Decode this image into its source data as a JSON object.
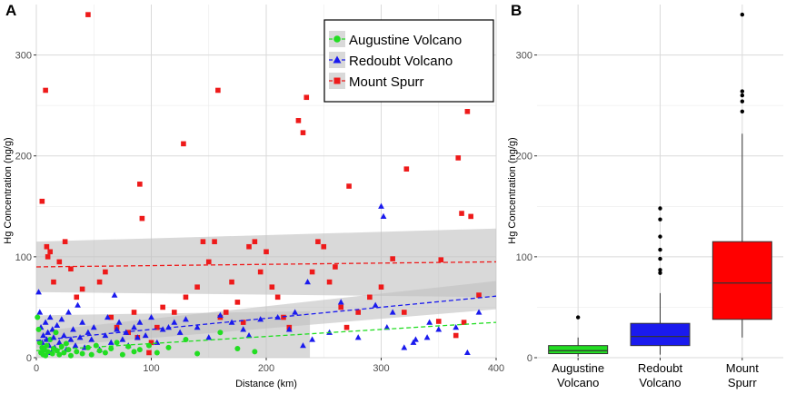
{
  "chart_data": [
    {
      "type": "scatter",
      "panel_label": "A",
      "xlabel": "Distance (km)",
      "ylabel": "Hg Concentration (ng/g)",
      "xlim": [
        0,
        400
      ],
      "ylim": [
        0,
        350
      ],
      "x_ticks": [
        "0",
        "100",
        "200",
        "300",
        "400"
      ],
      "y_ticks": [
        "0",
        "100",
        "200",
        "300"
      ],
      "legend": {
        "placement": "top-right",
        "entries": [
          "Augustine Volcano",
          "Redoubt Volcano",
          "Mount Spurr"
        ]
      },
      "series": [
        {
          "name": "Augustine Volcano",
          "color": "#22dd22",
          "marker": "circle",
          "trend": {
            "x": [
              0,
              400
            ],
            "y": [
              7,
              35
            ]
          },
          "band": {
            "x": [
              0,
              238
            ],
            "lower": [
              0,
              0
            ],
            "upper": [
              42,
              46
            ]
          },
          "points": [
            [
              1,
              40
            ],
            [
              2,
              28
            ],
            [
              3,
              15
            ],
            [
              4,
              5
            ],
            [
              5,
              10
            ],
            [
              6,
              3
            ],
            [
              7,
              8
            ],
            [
              8,
              2
            ],
            [
              9,
              12
            ],
            [
              10,
              6
            ],
            [
              12,
              18
            ],
            [
              14,
              4
            ],
            [
              15,
              9
            ],
            [
              17,
              25
            ],
            [
              18,
              7
            ],
            [
              20,
              3
            ],
            [
              22,
              11
            ],
            [
              24,
              5
            ],
            [
              26,
              14
            ],
            [
              28,
              8
            ],
            [
              30,
              2
            ],
            [
              35,
              6
            ],
            [
              40,
              4
            ],
            [
              45,
              10
            ],
            [
              48,
              3
            ],
            [
              52,
              12
            ],
            [
              55,
              7
            ],
            [
              60,
              5
            ],
            [
              65,
              9
            ],
            [
              70,
              15
            ],
            [
              75,
              3
            ],
            [
              80,
              11
            ],
            [
              85,
              6
            ],
            [
              90,
              8
            ],
            [
              98,
              12
            ],
            [
              105,
              5
            ],
            [
              115,
              10
            ],
            [
              130,
              18
            ],
            [
              140,
              4
            ],
            [
              160,
              25
            ],
            [
              175,
              9
            ],
            [
              190,
              6
            ]
          ]
        },
        {
          "name": "Redoubt Volcano",
          "color": "#1a1aee",
          "marker": "triangle",
          "trend": {
            "x": [
              0,
              400
            ],
            "y": [
              17,
              61
            ]
          },
          "band": {
            "x": [
              0,
              400
            ],
            "lower": [
              10,
              48
            ],
            "upper": [
              26,
              76
            ]
          },
          "points": [
            [
              2,
              65
            ],
            [
              3,
              45
            ],
            [
              4,
              30
            ],
            [
              5,
              15
            ],
            [
              6,
              22
            ],
            [
              7,
              8
            ],
            [
              8,
              35
            ],
            [
              9,
              18
            ],
            [
              10,
              25
            ],
            [
              11,
              12
            ],
            [
              12,
              40
            ],
            [
              13,
              5
            ],
            [
              14,
              28
            ],
            [
              15,
              20
            ],
            [
              16,
              10
            ],
            [
              18,
              32
            ],
            [
              20,
              15
            ],
            [
              22,
              38
            ],
            [
              24,
              22
            ],
            [
              26,
              8
            ],
            [
              28,
              45
            ],
            [
              30,
              18
            ],
            [
              32,
              28
            ],
            [
              34,
              12
            ],
            [
              36,
              52
            ],
            [
              38,
              20
            ],
            [
              40,
              35
            ],
            [
              42,
              10
            ],
            [
              45,
              25
            ],
            [
              48,
              18
            ],
            [
              50,
              30
            ],
            [
              55,
              8
            ],
            [
              60,
              22
            ],
            [
              62,
              40
            ],
            [
              65,
              15
            ],
            [
              68,
              62
            ],
            [
              70,
              28
            ],
            [
              72,
              35
            ],
            [
              75,
              18
            ],
            [
              78,
              25
            ],
            [
              80,
              12
            ],
            [
              85,
              30
            ],
            [
              88,
              20
            ],
            [
              90,
              35
            ],
            [
              95,
              22
            ],
            [
              100,
              40
            ],
            [
              105,
              15
            ],
            [
              110,
              28
            ],
            [
              115,
              30
            ],
            [
              120,
              35
            ],
            [
              125,
              25
            ],
            [
              130,
              38
            ],
            [
              140,
              30
            ],
            [
              150,
              20
            ],
            [
              160,
              42
            ],
            [
              170,
              35
            ],
            [
              180,
              28
            ],
            [
              185,
              22
            ],
            [
              195,
              38
            ],
            [
              210,
              40
            ],
            [
              220,
              28
            ],
            [
              225,
              45
            ],
            [
              232,
              12
            ],
            [
              236,
              75
            ],
            [
              240,
              18
            ],
            [
              255,
              25
            ],
            [
              265,
              55
            ],
            [
              280,
              20
            ],
            [
              295,
              52
            ],
            [
              300,
              150
            ],
            [
              302,
              140
            ],
            [
              305,
              30
            ],
            [
              310,
              45
            ],
            [
              320,
              10
            ],
            [
              328,
              15
            ],
            [
              330,
              18
            ],
            [
              340,
              20
            ],
            [
              342,
              35
            ],
            [
              350,
              28
            ],
            [
              365,
              30
            ],
            [
              375,
              5
            ],
            [
              385,
              45
            ]
          ]
        },
        {
          "name": "Mount Spurr",
          "color": "#ee1a1a",
          "marker": "square",
          "trend": {
            "x": [
              0,
              400
            ],
            "y": [
              90,
              95
            ]
          },
          "band": {
            "x": [
              0,
              400
            ],
            "lower": [
              65,
              60
            ],
            "upper": [
              115,
              128
            ]
          },
          "points": [
            [
              5,
              155
            ],
            [
              8,
              265
            ],
            [
              9,
              110
            ],
            [
              10,
              100
            ],
            [
              12,
              105
            ],
            [
              15,
              75
            ],
            [
              20,
              95
            ],
            [
              25,
              115
            ],
            [
              30,
              88
            ],
            [
              35,
              60
            ],
            [
              40,
              68
            ],
            [
              45,
              340
            ],
            [
              55,
              75
            ],
            [
              60,
              85
            ],
            [
              65,
              40
            ],
            [
              70,
              30
            ],
            [
              80,
              25
            ],
            [
              85,
              45
            ],
            [
              88,
              20
            ],
            [
              90,
              172
            ],
            [
              92,
              138
            ],
            [
              98,
              5
            ],
            [
              100,
              15
            ],
            [
              105,
              30
            ],
            [
              110,
              50
            ],
            [
              120,
              45
            ],
            [
              128,
              212
            ],
            [
              130,
              60
            ],
            [
              140,
              70
            ],
            [
              145,
              115
            ],
            [
              150,
              95
            ],
            [
              155,
              115
            ],
            [
              158,
              265
            ],
            [
              160,
              40
            ],
            [
              165,
              45
            ],
            [
              170,
              75
            ],
            [
              175,
              55
            ],
            [
              180,
              35
            ],
            [
              185,
              110
            ],
            [
              190,
              115
            ],
            [
              195,
              85
            ],
            [
              200,
              105
            ],
            [
              205,
              70
            ],
            [
              210,
              60
            ],
            [
              215,
              40
            ],
            [
              220,
              30
            ],
            [
              228,
              235
            ],
            [
              232,
              223
            ],
            [
              235,
              258
            ],
            [
              240,
              85
            ],
            [
              245,
              115
            ],
            [
              250,
              110
            ],
            [
              255,
              75
            ],
            [
              260,
              90
            ],
            [
              265,
              50
            ],
            [
              270,
              30
            ],
            [
              272,
              170
            ],
            [
              280,
              45
            ],
            [
              290,
              60
            ],
            [
              300,
              70
            ],
            [
              310,
              98
            ],
            [
              320,
              45
            ],
            [
              322,
              187
            ],
            [
              350,
              36
            ],
            [
              352,
              97
            ],
            [
              365,
              22
            ],
            [
              367,
              198
            ],
            [
              370,
              143
            ],
            [
              372,
              35
            ],
            [
              375,
              244
            ],
            [
              378,
              140
            ],
            [
              385,
              62
            ]
          ]
        }
      ]
    },
    {
      "type": "box",
      "panel_label": "B",
      "ylabel": "Hg Concentration (ng/g)",
      "ylim": [
        0,
        350
      ],
      "y_ticks": [
        "0",
        "100",
        "200",
        "300"
      ],
      "categories": [
        {
          "label_line1": "Augustine",
          "label_line2": "Volcano",
          "color": "#22dd22",
          "whisker_low": 1,
          "q1": 4,
          "median": 7,
          "q3": 12,
          "whisker_high": 20,
          "outliers": [
            40
          ]
        },
        {
          "label_line1": "Redoubt",
          "label_line2": "Volcano",
          "color": "#1a1aee",
          "whisker_low": 3,
          "q1": 12,
          "median": 21,
          "q3": 34,
          "whisker_high": 64,
          "outliers": [
            84,
            87,
            98,
            107,
            120,
            137,
            148
          ]
        },
        {
          "label_line1": "Mount",
          "label_line2": "Spurr",
          "color": "#ff0000",
          "whisker_low": 20,
          "q1": 38,
          "median": 74,
          "q3": 115,
          "whisker_high": 222,
          "outliers": [
            244,
            254,
            260,
            264,
            340
          ]
        }
      ]
    }
  ]
}
